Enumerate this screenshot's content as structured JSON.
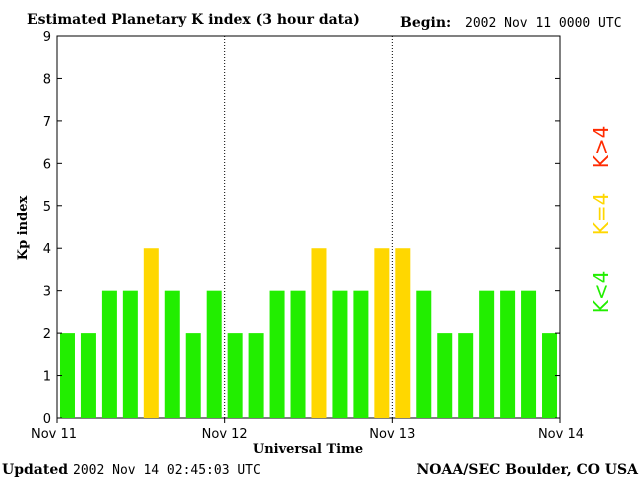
{
  "header": {
    "title": "Estimated Planetary K index (3 hour data)",
    "begin_label": "Begin:",
    "begin_value": "2002 Nov 11 0000 UTC"
  },
  "footer": {
    "updated_label": "Updated",
    "updated_value": "2002 Nov 14 02:45:03 UTC",
    "source": "NOAA/SEC Boulder, CO USA"
  },
  "legend": {
    "low": "K<4",
    "mid": "K=4",
    "high": "K>4"
  },
  "colors": {
    "low": "#22ee00",
    "mid": "#ffd700",
    "high": "#ff2a00",
    "text": "#000000"
  },
  "chart_data": {
    "type": "bar",
    "title": "Estimated Planetary K index (3 hour data)",
    "xlabel": "Universal Time",
    "ylabel": "Kp index",
    "ylim": [
      0,
      9
    ],
    "yticks": [
      0,
      1,
      2,
      3,
      4,
      5,
      6,
      7,
      8,
      9
    ],
    "xtick_labels": [
      "Nov 11",
      "Nov 12",
      "Nov 13",
      "Nov 14"
    ],
    "day_dividers": [
      "Nov 12",
      "Nov 13"
    ],
    "bars_per_day": 8,
    "values": [
      2,
      2,
      3,
      3,
      4,
      3,
      2,
      3,
      2,
      2,
      3,
      3,
      4,
      3,
      3,
      4,
      4,
      3,
      2,
      2,
      3,
      3,
      3,
      2
    ]
  }
}
